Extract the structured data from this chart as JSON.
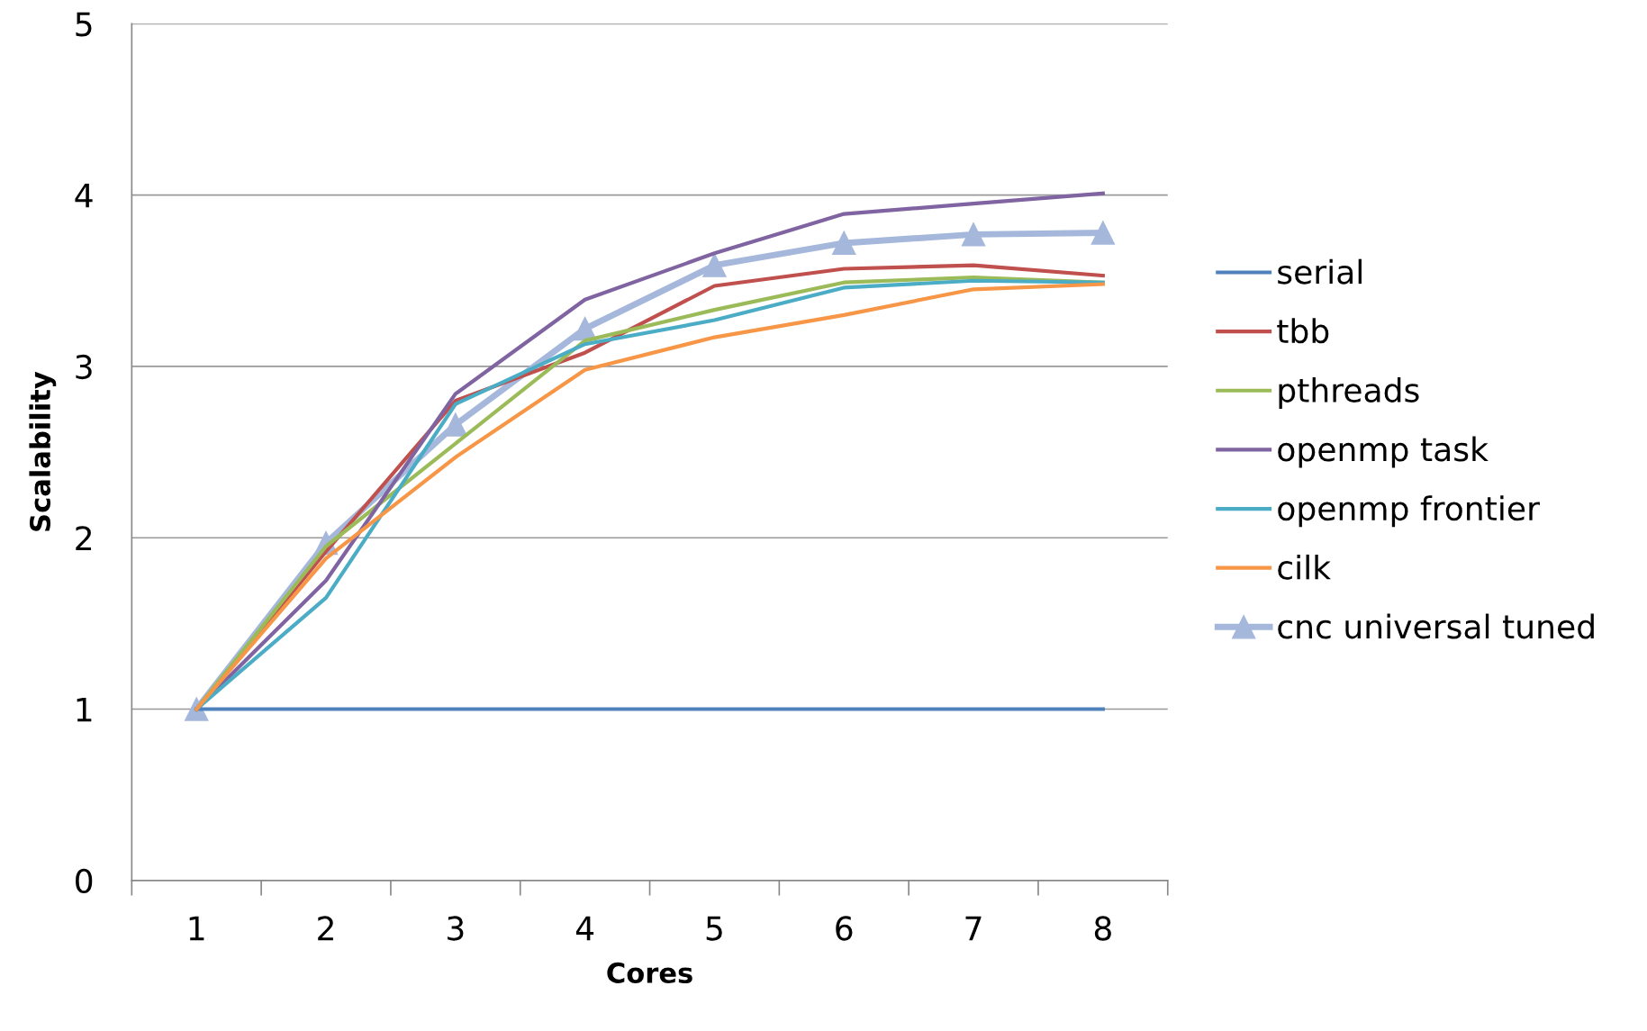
{
  "chart_data": {
    "type": "line",
    "xlabel": "Cores",
    "ylabel": "Scalability",
    "categories": [
      "1",
      "2",
      "3",
      "4",
      "5",
      "6",
      "7",
      "8"
    ],
    "ylim": [
      0,
      5
    ],
    "yticks": [
      0,
      1,
      2,
      3,
      4,
      5
    ],
    "grid": "y",
    "legend": "right",
    "marker": "none",
    "series": [
      {
        "name": "serial",
        "color": "#4f81bd",
        "values": [
          1,
          1,
          1,
          1,
          1,
          1,
          1,
          1
        ]
      },
      {
        "name": "tbb",
        "color": "#c0504d",
        "values": [
          1,
          1.92,
          2.8,
          3.08,
          3.47,
          3.57,
          3.59,
          3.53
        ]
      },
      {
        "name": "pthreads",
        "color": "#9bbb59",
        "values": [
          1,
          1.95,
          2.55,
          3.15,
          3.33,
          3.49,
          3.52,
          3.49
        ]
      },
      {
        "name": "openmp task",
        "color": "#8064a2",
        "values": [
          1,
          1.75,
          2.84,
          3.39,
          3.66,
          3.89,
          3.95,
          4.01
        ]
      },
      {
        "name": "openmp frontier",
        "color": "#4bacc6",
        "values": [
          1,
          1.65,
          2.78,
          3.13,
          3.27,
          3.46,
          3.5,
          3.49
        ]
      },
      {
        "name": "cilk",
        "color": "#f79646",
        "values": [
          1,
          1.88,
          2.47,
          2.98,
          3.17,
          3.3,
          3.45,
          3.48
        ]
      },
      {
        "name": "cnc universal tuned",
        "color": "#a5b8dc",
        "marker": "triangle",
        "values": [
          1,
          1.97,
          2.66,
          3.22,
          3.59,
          3.72,
          3.77,
          3.78
        ]
      }
    ]
  }
}
